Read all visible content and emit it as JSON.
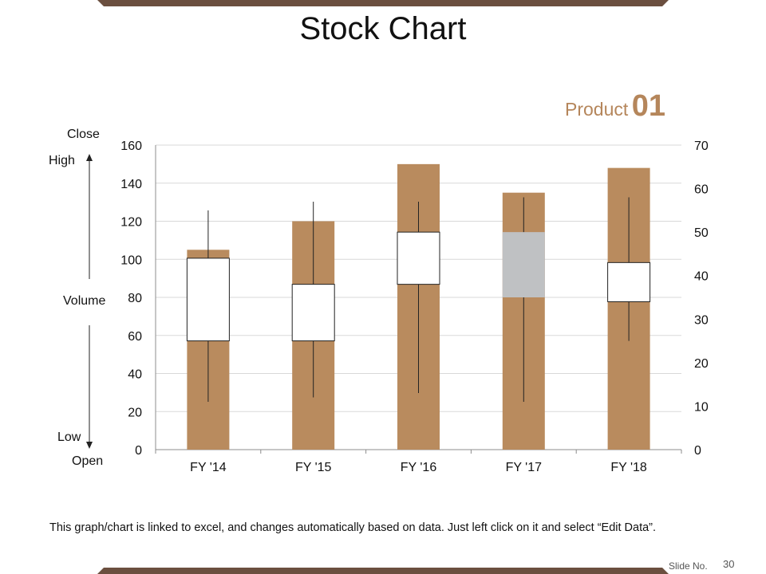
{
  "slide": {
    "title": "Stock Chart",
    "product_label": "Product",
    "product_number": "01",
    "footer_note": "This graph/chart is linked to excel, and changes automatically based on data. Just left click on it and select “Edit Data”.",
    "slide_no_label": "Slide No.",
    "slide_number": "30"
  },
  "axis_annotations": {
    "close": "Close",
    "high": "High",
    "volume": "Volume",
    "low": "Low",
    "open": "Open"
  },
  "colors": {
    "bar": "#b98b5e",
    "box_up": "#ffffff",
    "box_down": "#bfc1c3",
    "accent": "#b5865b",
    "band": "#6b4f3f"
  },
  "chart_data": {
    "type": "stock",
    "categories": [
      "FY '14",
      "FY '15",
      "FY '16",
      "FY '17",
      "FY '18"
    ],
    "volume": [
      105,
      120,
      150,
      135,
      148
    ],
    "open": [
      25,
      25,
      38,
      50,
      34
    ],
    "high": [
      55,
      57,
      57,
      58,
      58
    ],
    "low": [
      11,
      12,
      13,
      11,
      25
    ],
    "close": [
      44,
      38,
      50,
      35,
      43
    ],
    "left_axis": {
      "min": 0,
      "max": 160,
      "ticks": [
        0,
        20,
        40,
        60,
        80,
        100,
        120,
        140,
        160
      ]
    },
    "right_axis": {
      "min": 0,
      "max": 70,
      "ticks": [
        0,
        10,
        20,
        30,
        40,
        50,
        60,
        70
      ]
    },
    "grid": true
  }
}
